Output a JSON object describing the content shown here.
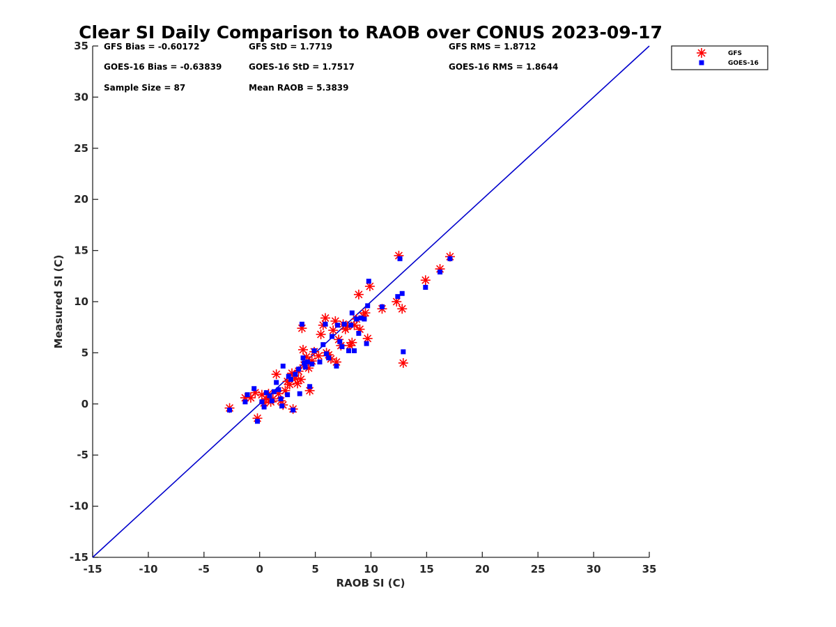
{
  "chart_data": {
    "type": "scatter",
    "title": "Clear SI Daily Comparison to RAOB over CONUS 2023-09-17",
    "xlabel": "RAOB SI (C)",
    "ylabel": "Measured SI (C)",
    "xlim": [
      -15,
      35
    ],
    "ylim": [
      -15,
      35
    ],
    "xticks": [
      -15,
      -10,
      -5,
      0,
      5,
      10,
      15,
      20,
      25,
      30,
      35
    ],
    "yticks": [
      -15,
      -10,
      -5,
      0,
      5,
      10,
      15,
      20,
      25,
      30,
      35
    ],
    "grid": false,
    "legend_position": "outside-top-right",
    "reference_line": {
      "x": [
        -15,
        35
      ],
      "y": [
        -15,
        35
      ],
      "color": "#0000cc"
    },
    "stats": [
      [
        "GFS Bias = -0.60172",
        "GFS StD = 1.7719",
        "GFS RMS = 1.8712"
      ],
      [
        "GOES-16 Bias = -0.63839",
        "GOES-16 StD = 1.7517",
        "GOES-16 RMS = 1.8644"
      ],
      [
        "Sample Size = 87",
        "Mean RAOB = 5.3839",
        ""
      ]
    ],
    "series": [
      {
        "name": "GFS",
        "marker": "asterisk",
        "color": "#ff0000",
        "points": [
          [
            -2.7,
            -0.4
          ],
          [
            -1.3,
            0.6
          ],
          [
            -0.8,
            0.6
          ],
          [
            -0.4,
            1.1
          ],
          [
            -0.2,
            -1.4
          ],
          [
            0.2,
            0.9
          ],
          [
            0.4,
            0.1
          ],
          [
            0.6,
            0.5
          ],
          [
            0.8,
            1.0
          ],
          [
            1.0,
            0.2
          ],
          [
            1.2,
            0.5
          ],
          [
            1.5,
            2.9
          ],
          [
            1.7,
            1.0
          ],
          [
            1.9,
            0.3
          ],
          [
            2.1,
            -0.1
          ],
          [
            2.3,
            1.3
          ],
          [
            2.5,
            2.2
          ],
          [
            2.7,
            1.9
          ],
          [
            2.9,
            3.0
          ],
          [
            3.0,
            -0.5
          ],
          [
            3.2,
            2.5
          ],
          [
            3.4,
            2.0
          ],
          [
            3.5,
            3.2
          ],
          [
            3.7,
            2.4
          ],
          [
            3.8,
            7.4
          ],
          [
            3.9,
            5.3
          ],
          [
            4.0,
            3.8
          ],
          [
            4.2,
            4.6
          ],
          [
            4.4,
            3.5
          ],
          [
            4.5,
            1.3
          ],
          [
            4.7,
            4.2
          ],
          [
            4.9,
            5.1
          ],
          [
            5.3,
            4.7
          ],
          [
            5.5,
            6.8
          ],
          [
            5.7,
            7.7
          ],
          [
            5.9,
            8.4
          ],
          [
            6.0,
            5.0
          ],
          [
            6.2,
            4.8
          ],
          [
            6.4,
            4.4
          ],
          [
            6.6,
            7.2
          ],
          [
            6.8,
            8.1
          ],
          [
            6.9,
            4.1
          ],
          [
            7.1,
            6.3
          ],
          [
            7.3,
            5.7
          ],
          [
            7.5,
            7.8
          ],
          [
            7.7,
            7.3
          ],
          [
            7.9,
            7.6
          ],
          [
            8.1,
            5.7
          ],
          [
            8.3,
            6.0
          ],
          [
            8.5,
            7.7
          ],
          [
            8.7,
            8.3
          ],
          [
            8.9,
            10.7
          ],
          [
            9.0,
            7.3
          ],
          [
            9.3,
            8.6
          ],
          [
            9.5,
            8.9
          ],
          [
            9.7,
            6.4
          ],
          [
            9.9,
            11.5
          ],
          [
            11.0,
            9.3
          ],
          [
            12.3,
            10.0
          ],
          [
            12.5,
            14.5
          ],
          [
            12.8,
            9.3
          ],
          [
            12.9,
            4.0
          ],
          [
            14.9,
            12.1
          ],
          [
            16.2,
            13.2
          ],
          [
            17.1,
            14.4
          ]
        ]
      },
      {
        "name": "GOES-16",
        "marker": "square",
        "color": "#0000ff",
        "points": [
          [
            -2.7,
            -0.6
          ],
          [
            -1.3,
            0.2
          ],
          [
            -1.1,
            0.9
          ],
          [
            -0.5,
            1.5
          ],
          [
            -0.2,
            -1.7
          ],
          [
            0.2,
            0.2
          ],
          [
            0.4,
            -0.3
          ],
          [
            0.6,
            1.1
          ],
          [
            0.9,
            0.8
          ],
          [
            1.1,
            0.3
          ],
          [
            1.3,
            1.2
          ],
          [
            1.5,
            2.1
          ],
          [
            1.7,
            1.4
          ],
          [
            1.9,
            0.5
          ],
          [
            2.0,
            -0.2
          ],
          [
            2.1,
            3.7
          ],
          [
            2.5,
            0.9
          ],
          [
            2.6,
            2.7
          ],
          [
            2.8,
            2.4
          ],
          [
            3.0,
            -0.6
          ],
          [
            3.2,
            2.9
          ],
          [
            3.5,
            3.4
          ],
          [
            3.6,
            1.0
          ],
          [
            3.8,
            7.8
          ],
          [
            3.9,
            4.5
          ],
          [
            4.0,
            4.0
          ],
          [
            4.1,
            3.6
          ],
          [
            4.3,
            4.1
          ],
          [
            4.5,
            1.7
          ],
          [
            4.7,
            3.9
          ],
          [
            4.9,
            5.2
          ],
          [
            5.4,
            4.1
          ],
          [
            5.7,
            5.8
          ],
          [
            5.9,
            7.8
          ],
          [
            6.0,
            4.9
          ],
          [
            6.2,
            4.5
          ],
          [
            6.5,
            6.6
          ],
          [
            6.9,
            3.7
          ],
          [
            7.0,
            7.7
          ],
          [
            7.2,
            6.1
          ],
          [
            7.4,
            5.6
          ],
          [
            7.6,
            7.8
          ],
          [
            8.0,
            5.2
          ],
          [
            8.2,
            7.7
          ],
          [
            8.3,
            8.9
          ],
          [
            8.5,
            5.2
          ],
          [
            8.7,
            8.3
          ],
          [
            8.9,
            6.9
          ],
          [
            9.1,
            8.4
          ],
          [
            9.4,
            8.3
          ],
          [
            9.6,
            5.9
          ],
          [
            9.7,
            9.6
          ],
          [
            9.8,
            12.0
          ],
          [
            11.0,
            9.5
          ],
          [
            12.4,
            10.5
          ],
          [
            12.6,
            14.2
          ],
          [
            12.8,
            10.8
          ],
          [
            12.9,
            5.1
          ],
          [
            14.9,
            11.4
          ],
          [
            16.2,
            12.9
          ],
          [
            17.1,
            14.2
          ]
        ]
      }
    ]
  }
}
